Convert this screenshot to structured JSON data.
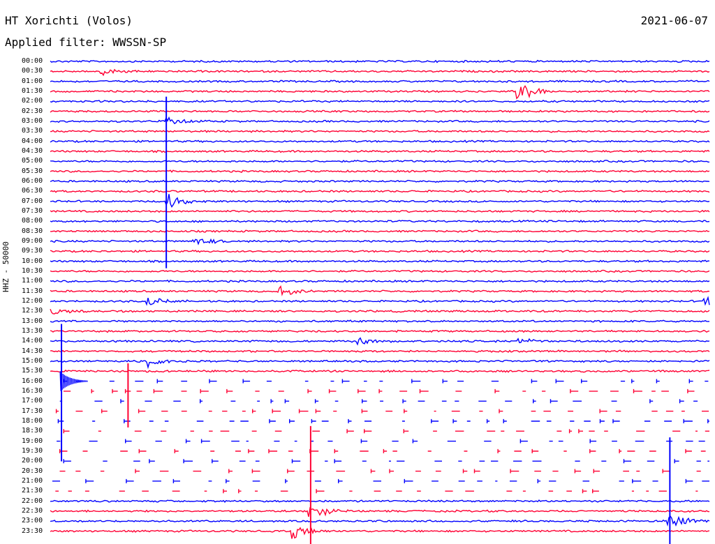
{
  "header": {
    "station": "HT Xorichti (Volos)",
    "date": "2021-06-07",
    "filter_label": "Applied filter: WWSSN-SP"
  },
  "channel_label": "HHZ - 50000",
  "colors": {
    "blue": "#0000ff",
    "red": "#ff0033"
  },
  "rows": [
    "00:00",
    "00:30",
    "01:00",
    "01:30",
    "02:00",
    "02:30",
    "03:00",
    "03:30",
    "04:00",
    "04:30",
    "05:00",
    "05:30",
    "06:00",
    "06:30",
    "07:00",
    "07:30",
    "08:00",
    "08:30",
    "09:00",
    "09:30",
    "10:00",
    "10:30",
    "11:00",
    "11:30",
    "12:00",
    "12:30",
    "13:00",
    "13:30",
    "14:00",
    "14:30",
    "15:00",
    "15:30",
    "16:00",
    "16:30",
    "17:00",
    "17:30",
    "18:00",
    "18:30",
    "19:00",
    "19:30",
    "20:00",
    "20:30",
    "21:00",
    "21:30",
    "22:00",
    "22:30",
    "23:00",
    "23:30"
  ],
  "events": [
    {
      "row": 1,
      "x": 0.08,
      "amp": 6
    },
    {
      "row": 3,
      "x": 0.71,
      "amp": 18
    },
    {
      "row": 6,
      "x": 0.18,
      "amp": 6
    },
    {
      "row": 14,
      "x": 0.18,
      "amp": 12
    },
    {
      "row": 18,
      "x": 0.22,
      "amp": 7
    },
    {
      "row": 23,
      "x": 0.35,
      "amp": 9
    },
    {
      "row": 24,
      "x": 0.15,
      "amp": 8
    },
    {
      "row": 24,
      "x": 0.995,
      "amp": 10
    },
    {
      "row": 25,
      "x": 0.0,
      "amp": 8
    },
    {
      "row": 28,
      "x": 0.47,
      "amp": 6
    },
    {
      "row": 28,
      "x": 0.71,
      "amp": 6
    },
    {
      "row": 30,
      "x": 0.15,
      "amp": 9
    },
    {
      "row": 32,
      "x": 0.015,
      "amp": 14
    },
    {
      "row": 45,
      "x": 0.395,
      "amp": 16
    },
    {
      "row": 46,
      "x": 0.94,
      "amp": 16
    },
    {
      "row": 47,
      "x": 0.37,
      "amp": 10
    }
  ],
  "spikes": [
    {
      "row": 14,
      "x": 0.176,
      "up": 150,
      "down": 96
    },
    {
      "row": 33,
      "x": 0.118,
      "up": 40,
      "down": 52
    },
    {
      "row": 32,
      "x": 0.017,
      "up": 82,
      "down": 115
    },
    {
      "row": 45,
      "x": 0.395,
      "up": 122,
      "down": 52
    },
    {
      "row": 46,
      "x": 0.94,
      "up": 120,
      "down": 34
    }
  ],
  "gap_rows": [
    32,
    33,
    34,
    35,
    36,
    37,
    38,
    39,
    40,
    41,
    42,
    43
  ]
}
